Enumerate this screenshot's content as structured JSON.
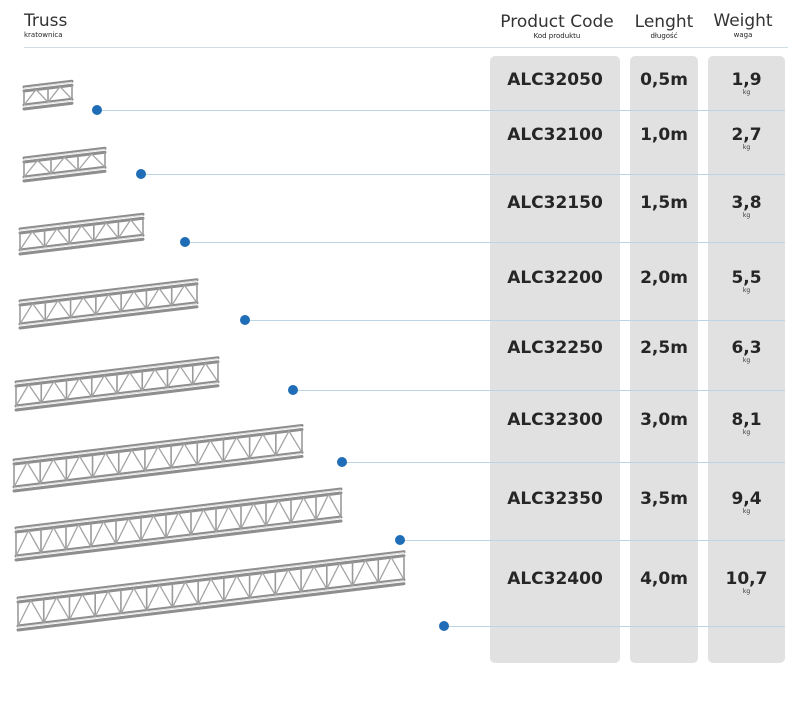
{
  "headers": {
    "truss": {
      "main": "Truss",
      "sub": "kratownica"
    },
    "code": {
      "main": "Product Code",
      "sub": "Kod produktu"
    },
    "length": {
      "main": "Lenght",
      "sub": "długość"
    },
    "weight": {
      "main": "Weight",
      "sub": "waga"
    }
  },
  "colors": {
    "dot": "#1f6db6",
    "leader": "#bcd5e6",
    "column": "#e1e1e1"
  },
  "products": [
    {
      "code": "ALC32050",
      "length": "0,5m",
      "weight": "1,9",
      "unit": "kg"
    },
    {
      "code": "ALC32100",
      "length": "1,0m",
      "weight": "2,7",
      "unit": "kg"
    },
    {
      "code": "ALC32150",
      "length": "1,5m",
      "weight": "3,8",
      "unit": "kg"
    },
    {
      "code": "ALC32200",
      "length": "2,0m",
      "weight": "5,5",
      "unit": "kg"
    },
    {
      "code": "ALC32250",
      "length": "2,5m",
      "weight": "6,3",
      "unit": "kg"
    },
    {
      "code": "ALC32300",
      "length": "3,0m",
      "weight": "8,1",
      "unit": "kg"
    },
    {
      "code": "ALC32350",
      "length": "3,5m",
      "weight": "9,4",
      "unit": "kg"
    },
    {
      "code": "ALC32400",
      "length": "4,0m",
      "weight": "10,7",
      "unit": "kg"
    }
  ]
}
